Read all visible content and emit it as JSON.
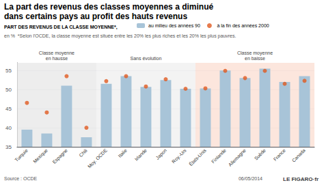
{
  "chart_data": {
    "type": "bar",
    "title": "La part des revenus des classes moyennes a diminué\ndans certains pays au profit des hauts revenus",
    "subtitle": "PART DES REVENUS DE LA CLASSE MOYENNE*,",
    "annotations": [
      "en %  *Selon l'OCDE, la classe moyenne est située entre les 20% les plus riches et les 20% les plus pauvres.",
      "Source : OCDE",
      "06/05/2014",
      "LE FIGARO·fr"
    ],
    "categories": [
      "Turquie",
      "Mexique",
      "Espagne",
      "Chili",
      "Moy. OCDE",
      "Italie",
      "Irlande",
      "Japon",
      "Roy.-Uni",
      "États-Unis",
      "Finlande",
      "Allemagne",
      "Suède",
      "France",
      "Canada"
    ],
    "series": [
      {
        "name": "au milieu des années 90",
        "type": "bar",
        "color": "#a8c4d8",
        "values": [
          39.5,
          38.5,
          51.0,
          37.5,
          51.5,
          53.5,
          50.7,
          52.5,
          50.2,
          50.3,
          55.0,
          53.0,
          55.5,
          52.0,
          53.5
        ]
      },
      {
        "name": "à la fin des années 2000",
        "type": "scatter",
        "marker": "circle",
        "color": "#e05a20",
        "values": [
          46.5,
          44.0,
          53.5,
          40.0,
          52.2,
          53.5,
          50.8,
          52.7,
          50.2,
          50.3,
          54.9,
          53.0,
          54.9,
          51.5,
          52.3
        ]
      }
    ],
    "zones": [
      {
        "label": "Classe moyenne\nen hausse",
        "start": "Turquie",
        "end": "Chili",
        "color": "#e8e8e8"
      },
      {
        "label": "Sans évolution",
        "start": "Moy. OCDE",
        "end": "Roy.-Uni",
        "color": "#f0f0f0"
      },
      {
        "label": "Classe moyenne\nen baisse",
        "start": "États-Unis",
        "end": "Canada",
        "color": "#fbe0d5"
      }
    ],
    "ylim": [
      35,
      57
    ],
    "yticks": [
      35,
      40,
      45,
      50,
      55
    ],
    "grid": true,
    "legend": "top"
  }
}
